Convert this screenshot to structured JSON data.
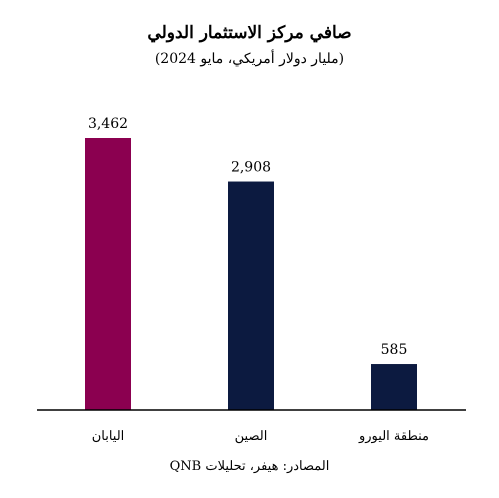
{
  "title": "صافي مركز الاستثمار الدولي",
  "subtitle": "(مليار دولار أمريكي، مايو 2024)",
  "source": "المصادر: هيفر، تحليلات QNB",
  "chart_data": {
    "type": "bar",
    "categories": [
      "اليابان",
      "الصين",
      "منطقة اليورو"
    ],
    "values": [
      3462,
      2908,
      585
    ],
    "value_labels": [
      "3,462",
      "2,908",
      "585"
    ],
    "colors": [
      "#8b0050",
      "#0c1a40",
      "#0c1a40"
    ],
    "ylim": [
      0,
      3462
    ],
    "grid": false,
    "legend": "none",
    "xlabel": "",
    "ylabel": ""
  }
}
